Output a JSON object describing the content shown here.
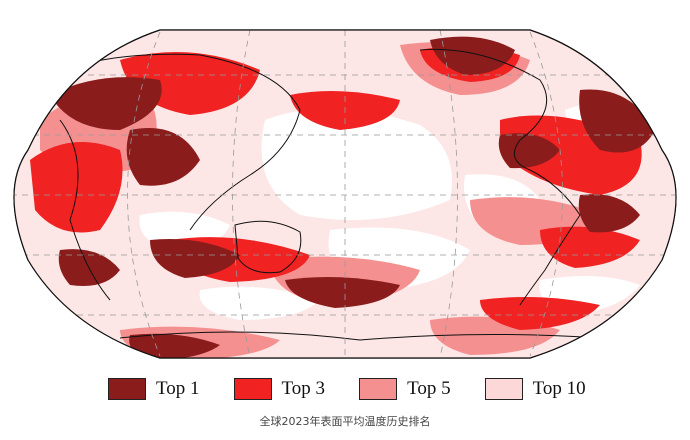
{
  "map": {
    "projection": "robinson",
    "center": "pacific",
    "graticule": "dashed",
    "background_class": "none"
  },
  "legend": {
    "placement": "bottom",
    "items": [
      {
        "label": "Top 1",
        "color": "#8b1c1c"
      },
      {
        "label": "Top 3",
        "color": "#f02222"
      },
      {
        "label": "Top 5",
        "color": "#f59090"
      },
      {
        "label": "Top 10",
        "color": "#fcd8d8"
      }
    ]
  },
  "caption": "全球2023年表面平均温度历史排名"
}
